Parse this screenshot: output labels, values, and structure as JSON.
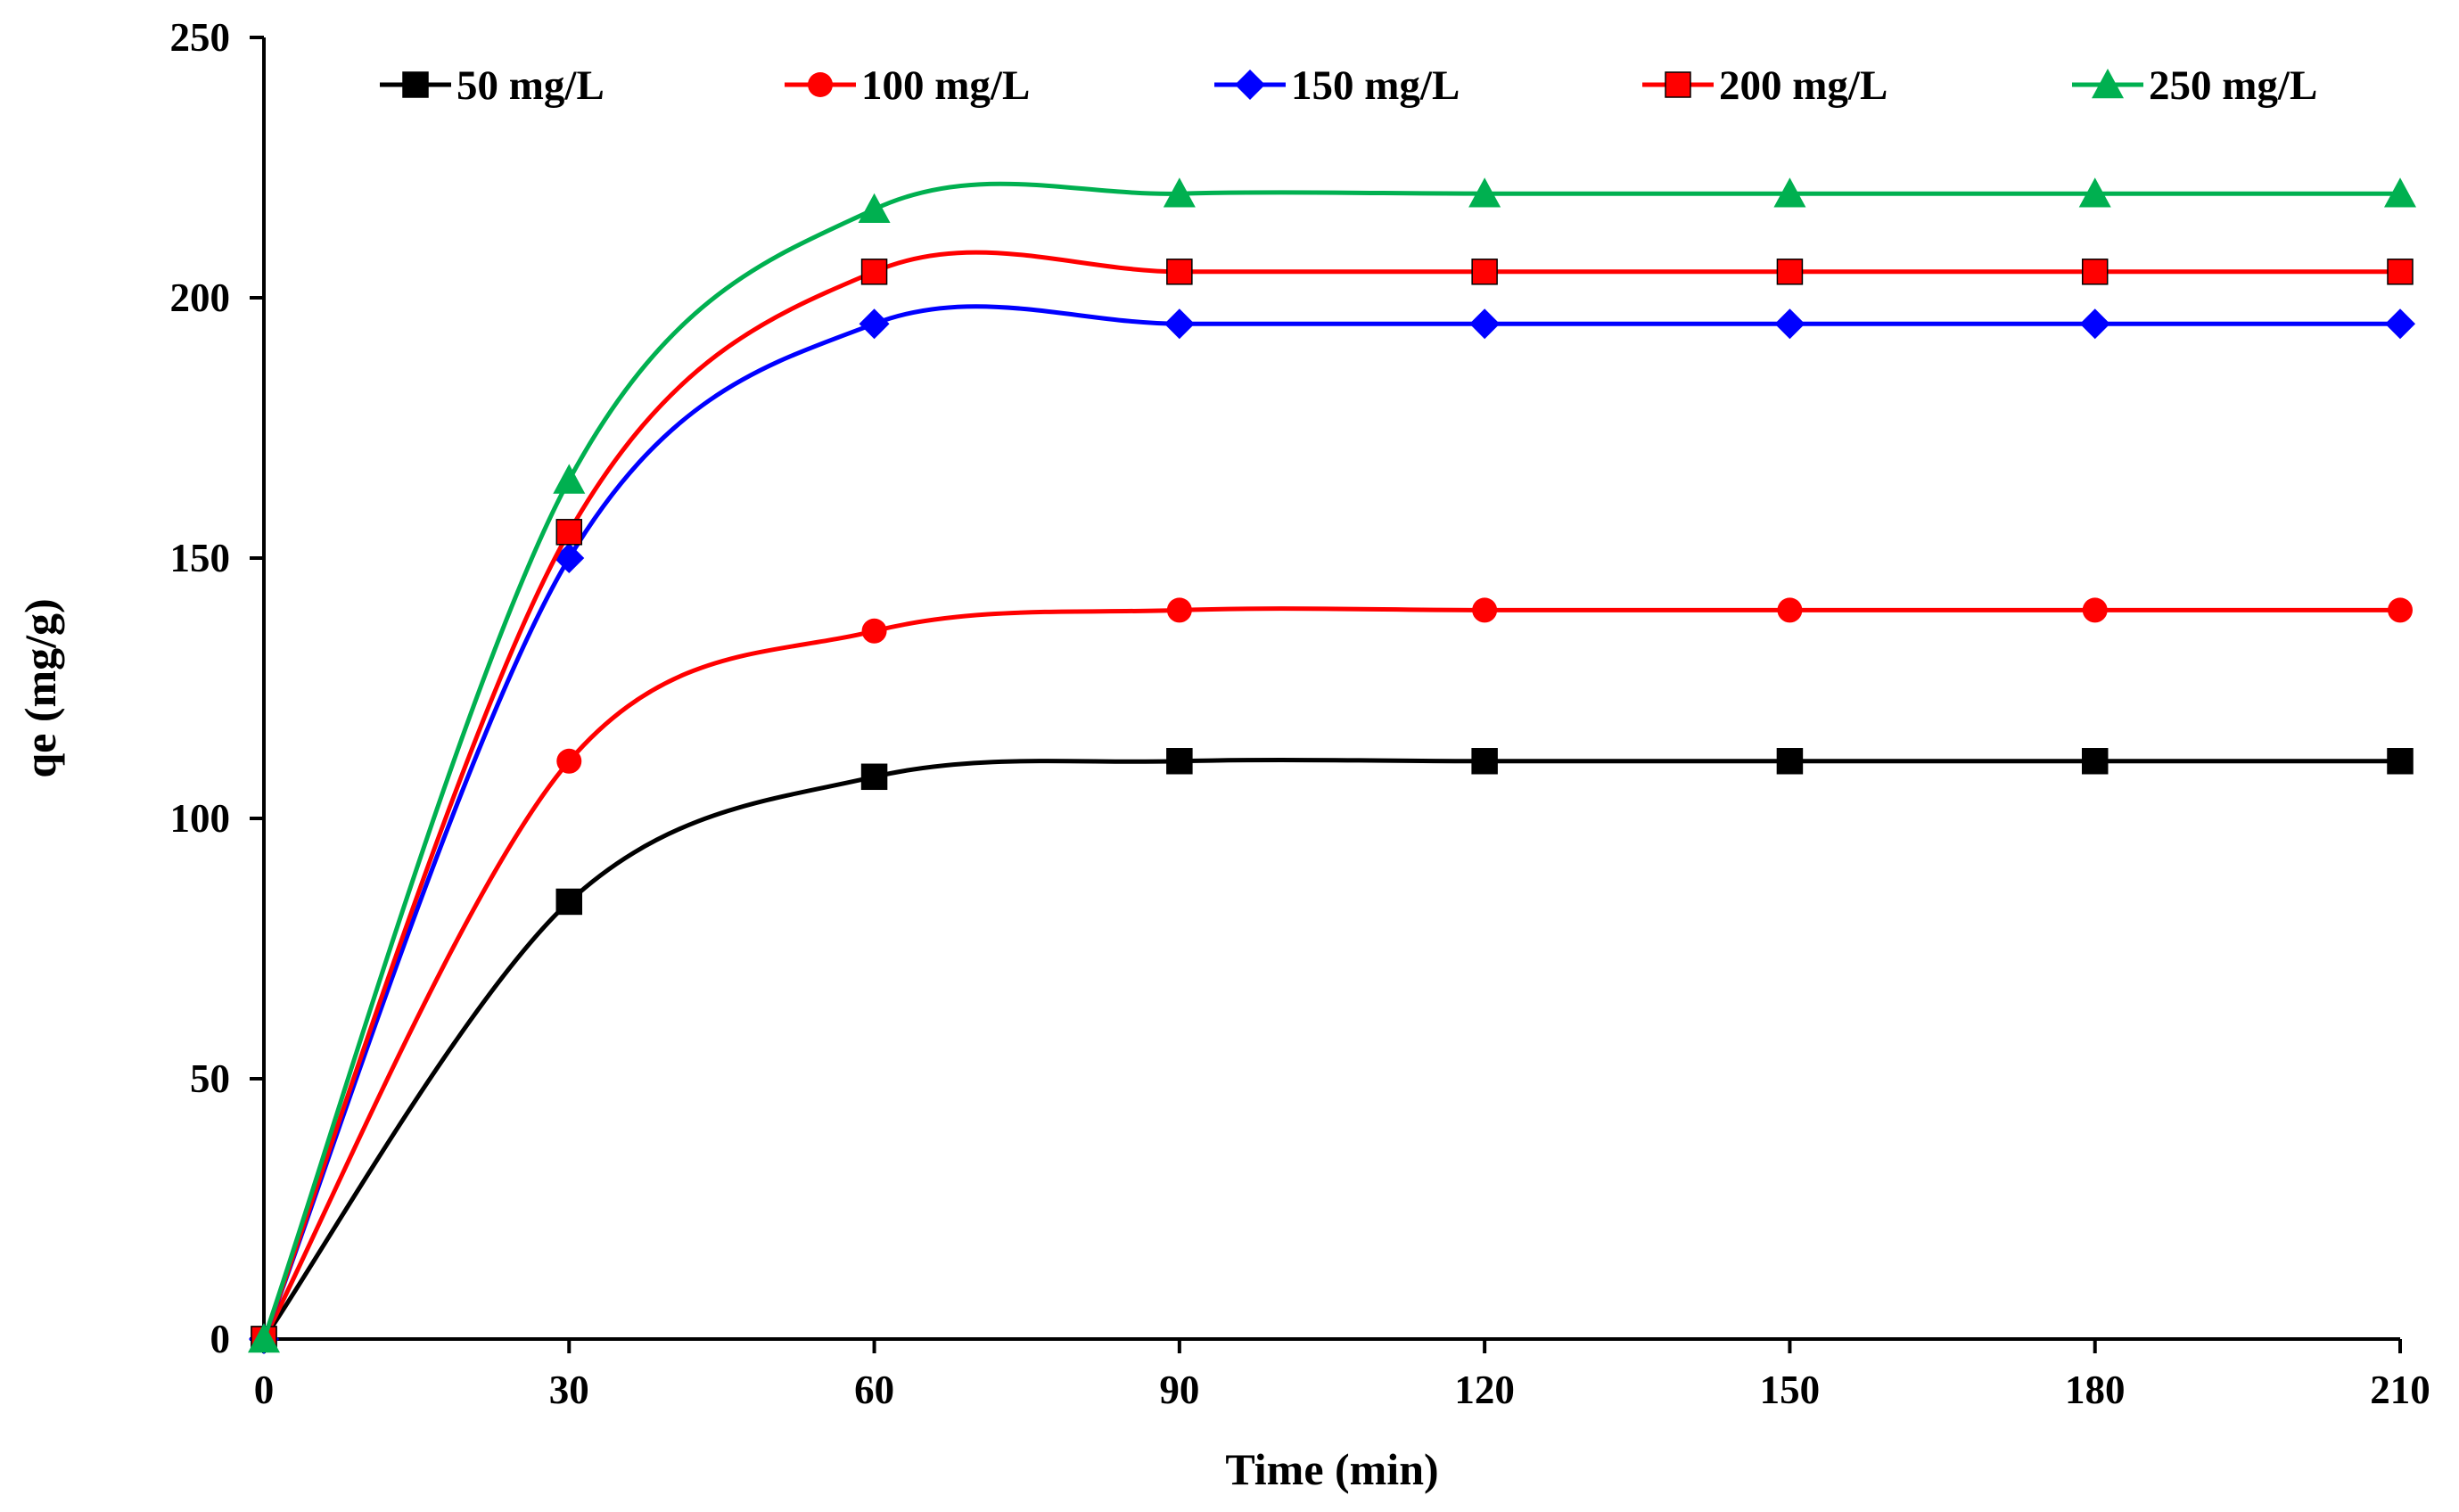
{
  "chart_data": {
    "type": "line",
    "title": "",
    "xlabel": "Time (min)",
    "ylabel": "qe  (mg/g)",
    "xlim": [
      0,
      210
    ],
    "ylim": [
      0,
      250
    ],
    "xticks": [
      0,
      30,
      60,
      90,
      120,
      150,
      180,
      210
    ],
    "yticks": [
      0,
      50,
      100,
      150,
      200,
      250
    ],
    "grid": false,
    "legend_position": "top",
    "x": [
      0,
      30,
      60,
      90,
      120,
      150,
      180,
      210
    ],
    "series": [
      {
        "name": "50 mg/L",
        "color": "#000000",
        "marker": "square",
        "values": [
          0,
          84,
          108,
          111,
          111,
          111,
          111,
          111
        ]
      },
      {
        "name": "100 mg/L",
        "color": "#ff0000",
        "marker": "circle",
        "values": [
          0,
          111,
          136,
          140,
          140,
          140,
          140,
          140
        ]
      },
      {
        "name": "150 mg/L",
        "color": "#0000ff",
        "marker": "diamond",
        "values": [
          0,
          150,
          195,
          195,
          195,
          195,
          195,
          195
        ]
      },
      {
        "name": "200 mg/L",
        "color": "#ff0000",
        "marker": "square",
        "values": [
          0,
          155,
          205,
          205,
          205,
          205,
          205,
          205
        ]
      },
      {
        "name": "250 mg/L",
        "color": "#00b050",
        "marker": "triangle",
        "values": [
          0,
          165,
          217,
          220,
          220,
          220,
          220,
          220
        ]
      }
    ]
  }
}
